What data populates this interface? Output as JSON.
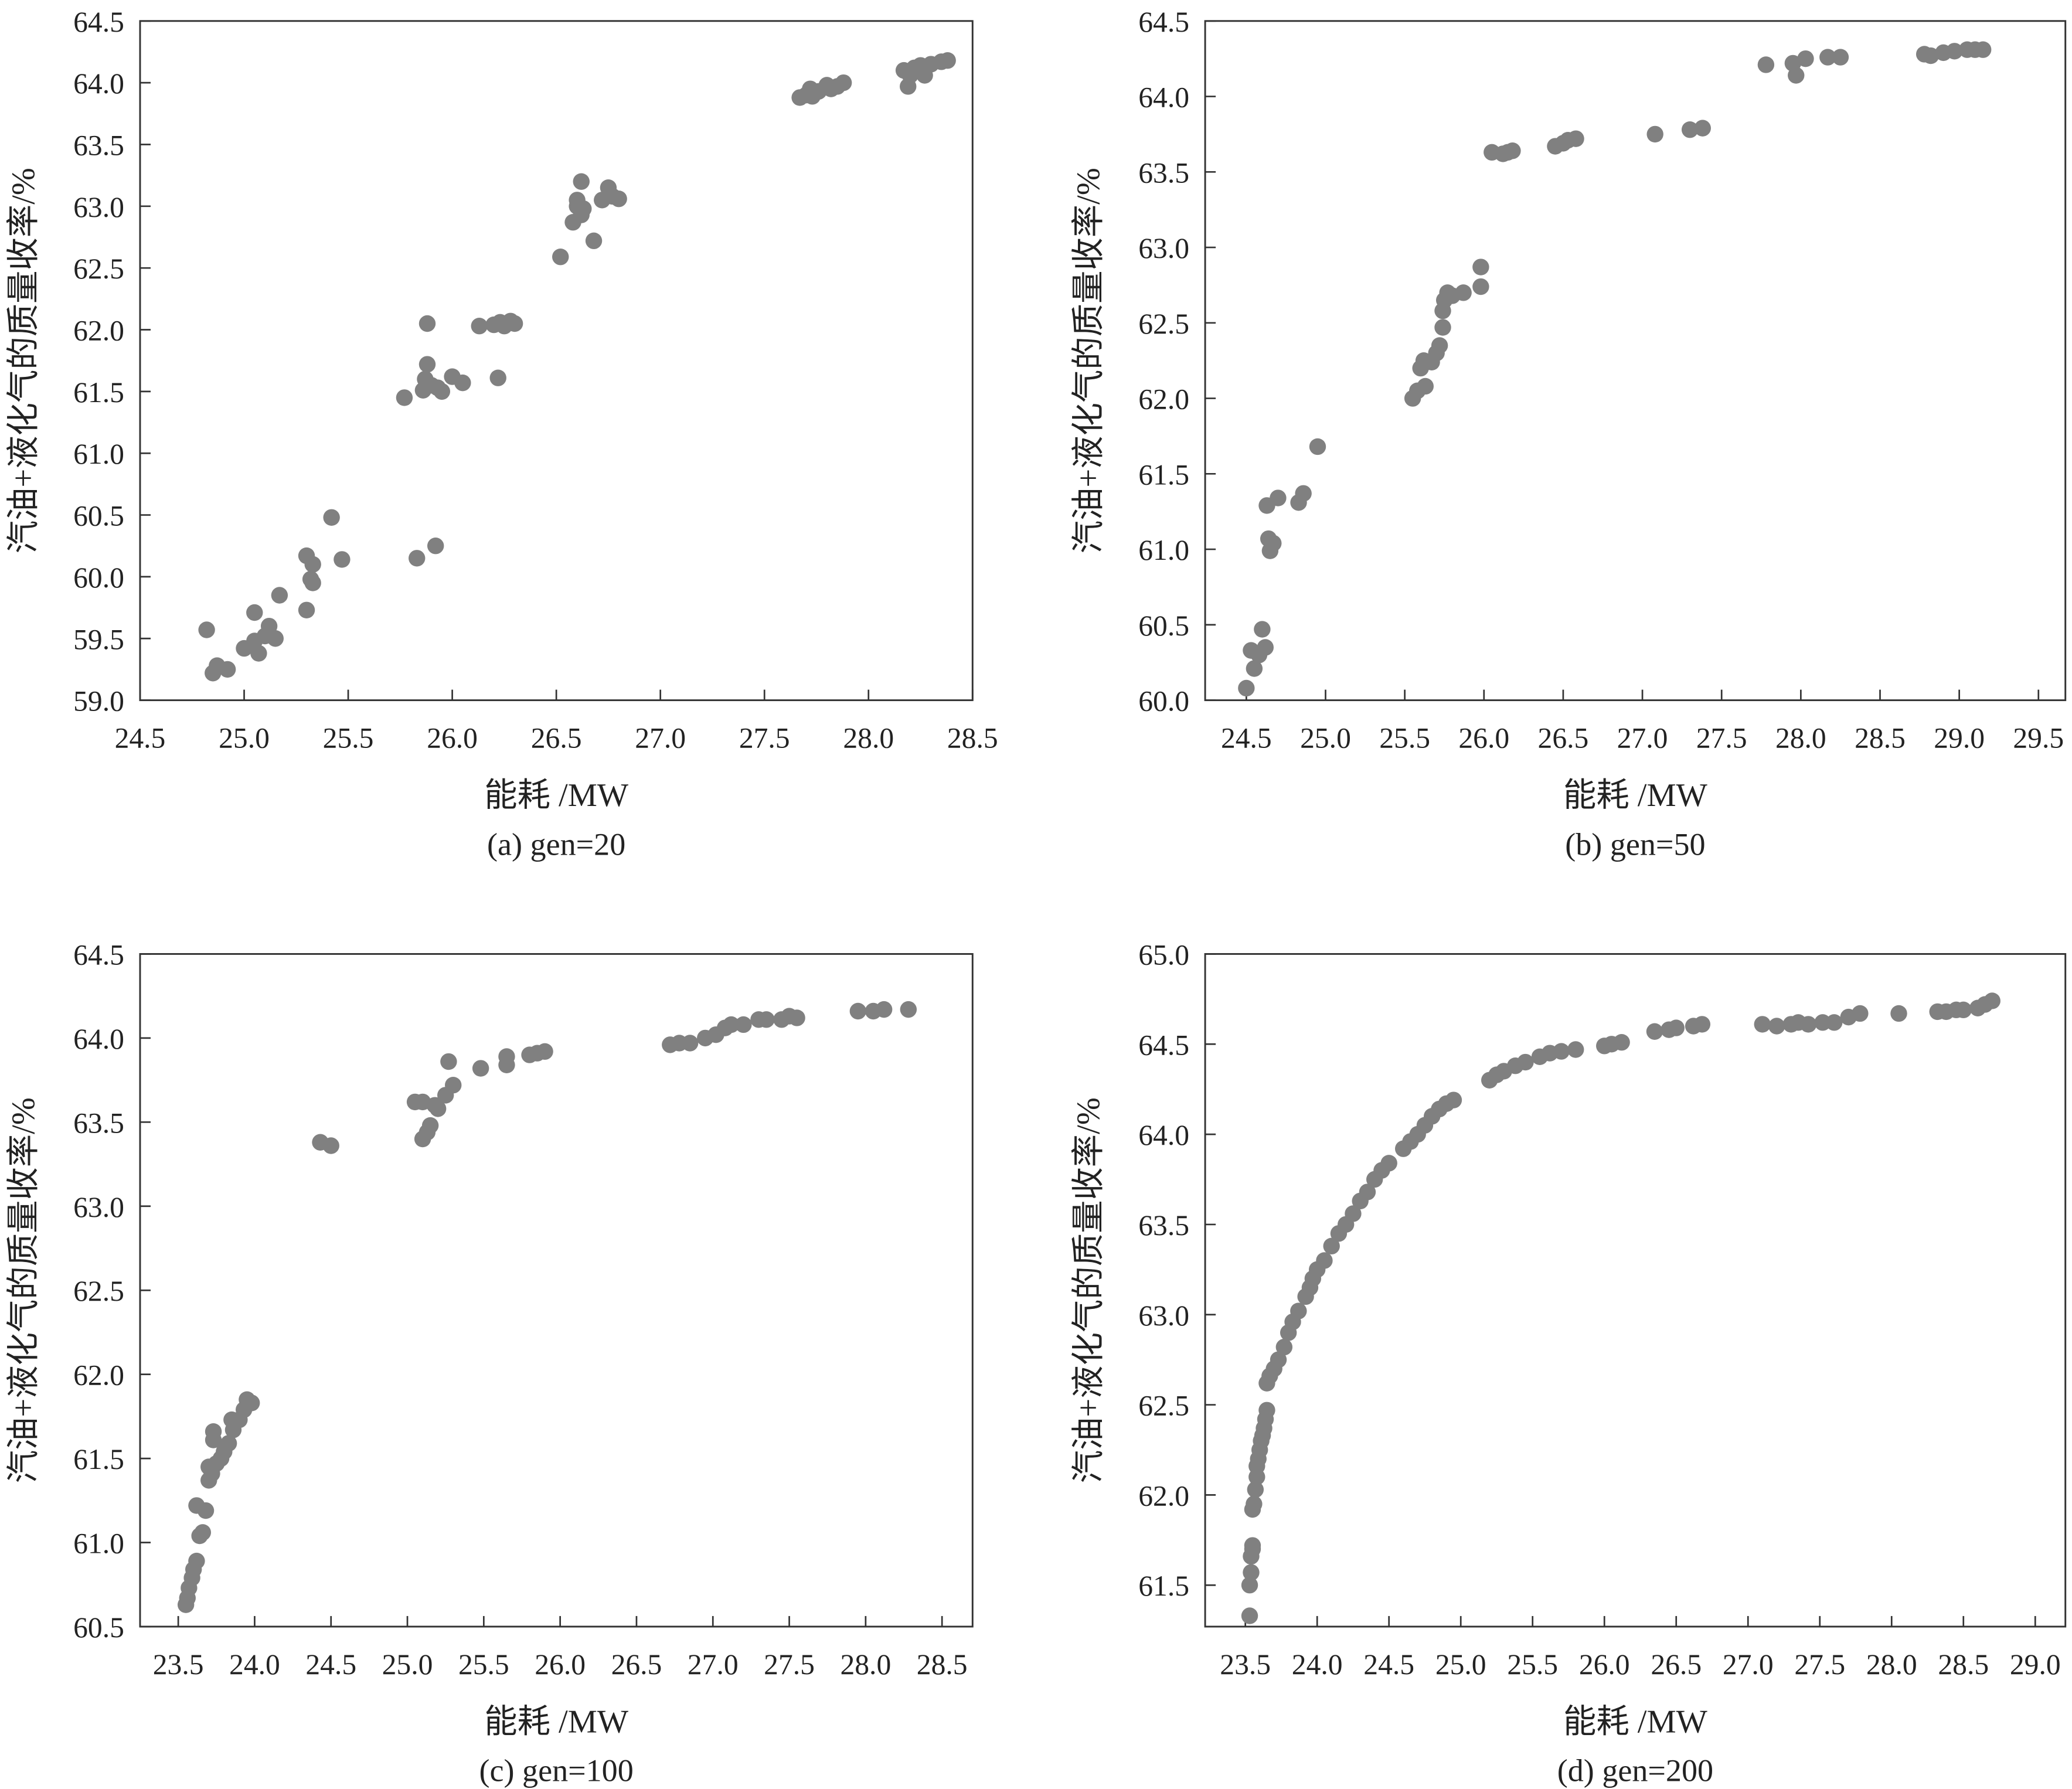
{
  "chart_data": [
    {
      "type": "scatter",
      "title": "(a) gen=20",
      "xlabel": "能耗 /MW",
      "ylabel": "汽油+液化气的质量收率/%",
      "xlim": [
        24.5,
        28.5
      ],
      "ylim": [
        59.0,
        64.5
      ],
      "xticks": [
        "24.5",
        "25.0",
        "25.5",
        "26.0",
        "26.5",
        "27.0",
        "27.5",
        "28.0",
        "28.5"
      ],
      "yticks": [
        "59.0",
        "59.5",
        "60.0",
        "60.5",
        "61.0",
        "61.5",
        "62.0",
        "62.5",
        "63.0",
        "63.5",
        "64.0",
        "64.5"
      ],
      "color": "#808080",
      "points": [
        [
          24.82,
          59.57
        ],
        [
          24.85,
          59.22
        ],
        [
          24.87,
          59.28
        ],
        [
          24.92,
          59.25
        ],
        [
          25.0,
          59.42
        ],
        [
          25.05,
          59.71
        ],
        [
          25.05,
          59.48
        ],
        [
          25.07,
          59.38
        ],
        [
          25.1,
          59.52
        ],
        [
          25.12,
          59.6
        ],
        [
          25.15,
          59.5
        ],
        [
          25.17,
          59.85
        ],
        [
          25.3,
          59.73
        ],
        [
          25.3,
          60.17
        ],
        [
          25.32,
          59.98
        ],
        [
          25.33,
          59.95
        ],
        [
          25.33,
          60.1
        ],
        [
          25.42,
          60.48
        ],
        [
          25.47,
          60.14
        ],
        [
          25.77,
          61.45
        ],
        [
          25.83,
          60.15
        ],
        [
          25.86,
          61.51
        ],
        [
          25.87,
          61.6
        ],
        [
          25.88,
          61.72
        ],
        [
          25.88,
          62.05
        ],
        [
          25.9,
          61.55
        ],
        [
          25.92,
          60.25
        ],
        [
          25.95,
          61.5
        ],
        [
          25.93,
          61.53
        ],
        [
          26.0,
          61.62
        ],
        [
          26.05,
          61.57
        ],
        [
          26.13,
          62.03
        ],
        [
          26.2,
          62.04
        ],
        [
          26.22,
          61.61
        ],
        [
          26.23,
          62.06
        ],
        [
          26.25,
          62.03
        ],
        [
          26.28,
          62.07
        ],
        [
          26.3,
          62.05
        ],
        [
          26.52,
          62.59
        ],
        [
          26.58,
          62.87
        ],
        [
          26.6,
          63.0
        ],
        [
          26.6,
          63.05
        ],
        [
          26.62,
          62.93
        ],
        [
          26.62,
          63.2
        ],
        [
          26.63,
          62.98
        ],
        [
          26.68,
          62.72
        ],
        [
          26.72,
          63.05
        ],
        [
          26.75,
          63.15
        ],
        [
          26.77,
          63.08
        ],
        [
          26.8,
          63.06
        ],
        [
          27.67,
          63.88
        ],
        [
          27.7,
          63.9
        ],
        [
          27.72,
          63.95
        ],
        [
          27.73,
          63.89
        ],
        [
          27.76,
          63.93
        ],
        [
          27.8,
          63.98
        ],
        [
          27.82,
          63.95
        ],
        [
          27.85,
          63.97
        ],
        [
          27.88,
          64.0
        ],
        [
          28.17,
          64.1
        ],
        [
          28.19,
          63.97
        ],
        [
          28.2,
          64.06
        ],
        [
          28.22,
          64.12
        ],
        [
          28.25,
          64.14
        ],
        [
          28.27,
          64.06
        ],
        [
          28.3,
          64.15
        ],
        [
          28.35,
          64.17
        ],
        [
          28.38,
          64.18
        ]
      ]
    },
    {
      "type": "scatter",
      "title": "(b) gen=50",
      "xlabel": "能耗 /MW",
      "ylabel": "汽油+液化气的质量收率/%",
      "xlim": [
        24.24,
        29.67
      ],
      "ylim": [
        60.0,
        64.5
      ],
      "xticks": [
        "24.5",
        "25.0",
        "25.5",
        "26.0",
        "26.5",
        "27.0",
        "27.5",
        "28.0",
        "28.5",
        "29.0",
        "29.5"
      ],
      "yticks": [
        "60.0",
        "60.5",
        "61.0",
        "61.5",
        "62.0",
        "62.5",
        "63.0",
        "63.5",
        "64.0",
        "64.5"
      ],
      "color": "#808080",
      "points": [
        [
          24.5,
          60.08
        ],
        [
          24.53,
          60.33
        ],
        [
          24.55,
          60.21
        ],
        [
          24.58,
          60.3
        ],
        [
          24.6,
          60.47
        ],
        [
          24.62,
          60.35
        ],
        [
          24.63,
          61.29
        ],
        [
          24.64,
          61.07
        ],
        [
          24.65,
          60.99
        ],
        [
          24.67,
          61.04
        ],
        [
          24.7,
          61.34
        ],
        [
          24.83,
          61.31
        ],
        [
          24.86,
          61.37
        ],
        [
          24.95,
          61.68
        ],
        [
          25.55,
          62.0
        ],
        [
          25.58,
          62.05
        ],
        [
          25.6,
          62.2
        ],
        [
          25.62,
          62.25
        ],
        [
          25.63,
          62.08
        ],
        [
          25.67,
          62.24
        ],
        [
          25.7,
          62.3
        ],
        [
          25.72,
          62.35
        ],
        [
          25.74,
          62.47
        ],
        [
          25.74,
          62.58
        ],
        [
          25.75,
          62.65
        ],
        [
          25.77,
          62.7
        ],
        [
          25.8,
          62.68
        ],
        [
          25.87,
          62.7
        ],
        [
          25.98,
          62.74
        ],
        [
          25.98,
          62.87
        ],
        [
          26.05,
          63.63
        ],
        [
          26.12,
          63.62
        ],
        [
          26.15,
          63.63
        ],
        [
          26.18,
          63.64
        ],
        [
          26.45,
          63.67
        ],
        [
          26.5,
          63.69
        ],
        [
          26.53,
          63.71
        ],
        [
          26.58,
          63.72
        ],
        [
          27.08,
          63.75
        ],
        [
          27.3,
          63.78
        ],
        [
          27.38,
          63.79
        ],
        [
          27.78,
          64.21
        ],
        [
          27.95,
          64.22
        ],
        [
          27.97,
          64.14
        ],
        [
          28.03,
          64.25
        ],
        [
          28.17,
          64.26
        ],
        [
          28.25,
          64.26
        ],
        [
          28.78,
          64.28
        ],
        [
          28.82,
          64.27
        ],
        [
          28.9,
          64.29
        ],
        [
          28.97,
          64.3
        ],
        [
          29.05,
          64.31
        ],
        [
          29.1,
          64.31
        ],
        [
          29.15,
          64.31
        ]
      ]
    },
    {
      "type": "scatter",
      "title": "(c) gen=100",
      "xlabel": "能耗 /MW",
      "ylabel": "汽油+液化气的质量收率/%",
      "xlim": [
        23.25,
        28.7
      ],
      "ylim": [
        60.5,
        64.5
      ],
      "xticks": [
        "23.5",
        "24.0",
        "24.5",
        "25.0",
        "25.5",
        "26.0",
        "26.5",
        "27.0",
        "27.5",
        "28.0",
        "28.5"
      ],
      "yticks": [
        "60.5",
        "61.0",
        "61.5",
        "62.0",
        "62.5",
        "63.0",
        "63.5",
        "64.0",
        "64.5"
      ],
      "color": "#808080",
      "points": [
        [
          23.55,
          60.63
        ],
        [
          23.56,
          60.67
        ],
        [
          23.57,
          60.73
        ],
        [
          23.59,
          60.79
        ],
        [
          23.6,
          60.84
        ],
        [
          23.62,
          60.89
        ],
        [
          23.62,
          61.22
        ],
        [
          23.64,
          61.04
        ],
        [
          23.66,
          61.06
        ],
        [
          23.68,
          61.19
        ],
        [
          23.7,
          61.37
        ],
        [
          23.7,
          61.45
        ],
        [
          23.72,
          61.41
        ],
        [
          23.73,
          61.61
        ],
        [
          23.73,
          61.66
        ],
        [
          23.75,
          61.47
        ],
        [
          23.78,
          61.5
        ],
        [
          23.8,
          61.54
        ],
        [
          23.83,
          61.59
        ],
        [
          23.85,
          61.73
        ],
        [
          23.86,
          61.67
        ],
        [
          23.9,
          61.73
        ],
        [
          23.93,
          61.79
        ],
        [
          23.95,
          61.85
        ],
        [
          23.98,
          61.83
        ],
        [
          24.43,
          63.38
        ],
        [
          24.5,
          63.36
        ],
        [
          25.05,
          63.62
        ],
        [
          25.1,
          63.62
        ],
        [
          25.1,
          63.4
        ],
        [
          25.13,
          63.44
        ],
        [
          25.15,
          63.48
        ],
        [
          25.18,
          63.6
        ],
        [
          25.2,
          63.58
        ],
        [
          25.25,
          63.66
        ],
        [
          25.27,
          63.86
        ],
        [
          25.3,
          63.72
        ],
        [
          25.48,
          63.82
        ],
        [
          25.65,
          63.84
        ],
        [
          25.65,
          63.89
        ],
        [
          25.8,
          63.9
        ],
        [
          25.85,
          63.91
        ],
        [
          25.9,
          63.92
        ],
        [
          26.72,
          63.96
        ],
        [
          26.78,
          63.97
        ],
        [
          26.85,
          63.97
        ],
        [
          26.95,
          64.0
        ],
        [
          27.02,
          64.02
        ],
        [
          27.08,
          64.06
        ],
        [
          27.12,
          64.08
        ],
        [
          27.2,
          64.08
        ],
        [
          27.3,
          64.11
        ],
        [
          27.35,
          64.11
        ],
        [
          27.45,
          64.11
        ],
        [
          27.5,
          64.13
        ],
        [
          27.55,
          64.12
        ],
        [
          27.95,
          64.16
        ],
        [
          28.05,
          64.16
        ],
        [
          28.12,
          64.17
        ],
        [
          28.28,
          64.17
        ]
      ]
    },
    {
      "type": "scatter",
      "title": "(d) gen=200",
      "xlabel": "能耗 /MW",
      "ylabel": "汽油+液化气的质量收率/%",
      "xlim": [
        23.22,
        29.21
      ],
      "ylim": [
        61.27,
        65.0
      ],
      "xticks": [
        "23.5",
        "24.0",
        "24.5",
        "25.0",
        "25.5",
        "26.0",
        "26.5",
        "27.0",
        "27.5",
        "28.0",
        "28.5",
        "29.0"
      ],
      "yticks": [
        "61.5",
        "62.0",
        "62.5",
        "63.0",
        "63.5",
        "64.0",
        "64.5",
        "65.0"
      ],
      "color": "#808080",
      "points": [
        [
          23.53,
          61.33
        ],
        [
          23.53,
          61.5
        ],
        [
          23.54,
          61.57
        ],
        [
          23.54,
          61.66
        ],
        [
          23.55,
          61.7
        ],
        [
          23.55,
          61.72
        ],
        [
          23.55,
          61.92
        ],
        [
          23.56,
          61.95
        ],
        [
          23.57,
          62.03
        ],
        [
          23.58,
          62.1
        ],
        [
          23.58,
          62.16
        ],
        [
          23.59,
          62.2
        ],
        [
          23.6,
          62.25
        ],
        [
          23.61,
          62.3
        ],
        [
          23.62,
          62.33
        ],
        [
          23.63,
          62.37
        ],
        [
          23.64,
          62.42
        ],
        [
          23.65,
          62.47
        ],
        [
          23.65,
          62.62
        ],
        [
          23.67,
          62.66
        ],
        [
          23.7,
          62.7
        ],
        [
          23.73,
          62.75
        ],
        [
          23.77,
          62.82
        ],
        [
          23.8,
          62.9
        ],
        [
          23.83,
          62.96
        ],
        [
          23.87,
          63.02
        ],
        [
          23.92,
          63.1
        ],
        [
          23.95,
          63.15
        ],
        [
          23.97,
          63.2
        ],
        [
          24.0,
          63.25
        ],
        [
          24.05,
          63.3
        ],
        [
          24.1,
          63.38
        ],
        [
          24.15,
          63.45
        ],
        [
          24.2,
          63.5
        ],
        [
          24.25,
          63.56
        ],
        [
          24.3,
          63.63
        ],
        [
          24.35,
          63.68
        ],
        [
          24.4,
          63.75
        ],
        [
          24.45,
          63.8
        ],
        [
          24.5,
          63.84
        ],
        [
          24.6,
          63.92
        ],
        [
          24.65,
          63.96
        ],
        [
          24.7,
          64.0
        ],
        [
          24.75,
          64.05
        ],
        [
          24.8,
          64.1
        ],
        [
          24.85,
          64.14
        ],
        [
          24.9,
          64.17
        ],
        [
          24.95,
          64.19
        ],
        [
          25.2,
          64.3
        ],
        [
          25.25,
          64.33
        ],
        [
          25.3,
          64.35
        ],
        [
          25.38,
          64.38
        ],
        [
          25.45,
          64.4
        ],
        [
          25.55,
          64.43
        ],
        [
          25.62,
          64.45
        ],
        [
          25.7,
          64.46
        ],
        [
          25.8,
          64.47
        ],
        [
          26.0,
          64.49
        ],
        [
          26.05,
          64.5
        ],
        [
          26.12,
          64.51
        ],
        [
          26.35,
          64.57
        ],
        [
          26.45,
          64.58
        ],
        [
          26.5,
          64.59
        ],
        [
          26.62,
          64.6
        ],
        [
          26.68,
          64.61
        ],
        [
          27.1,
          64.61
        ],
        [
          27.2,
          64.6
        ],
        [
          27.3,
          64.61
        ],
        [
          27.35,
          64.62
        ],
        [
          27.42,
          64.61
        ],
        [
          27.52,
          64.62
        ],
        [
          27.6,
          64.62
        ],
        [
          27.7,
          64.65
        ],
        [
          27.78,
          64.67
        ],
        [
          28.05,
          64.67
        ],
        [
          28.32,
          64.68
        ],
        [
          28.38,
          64.68
        ],
        [
          28.45,
          64.69
        ],
        [
          28.5,
          64.69
        ],
        [
          28.6,
          64.7
        ],
        [
          28.65,
          64.72
        ],
        [
          28.7,
          64.74
        ]
      ]
    }
  ]
}
